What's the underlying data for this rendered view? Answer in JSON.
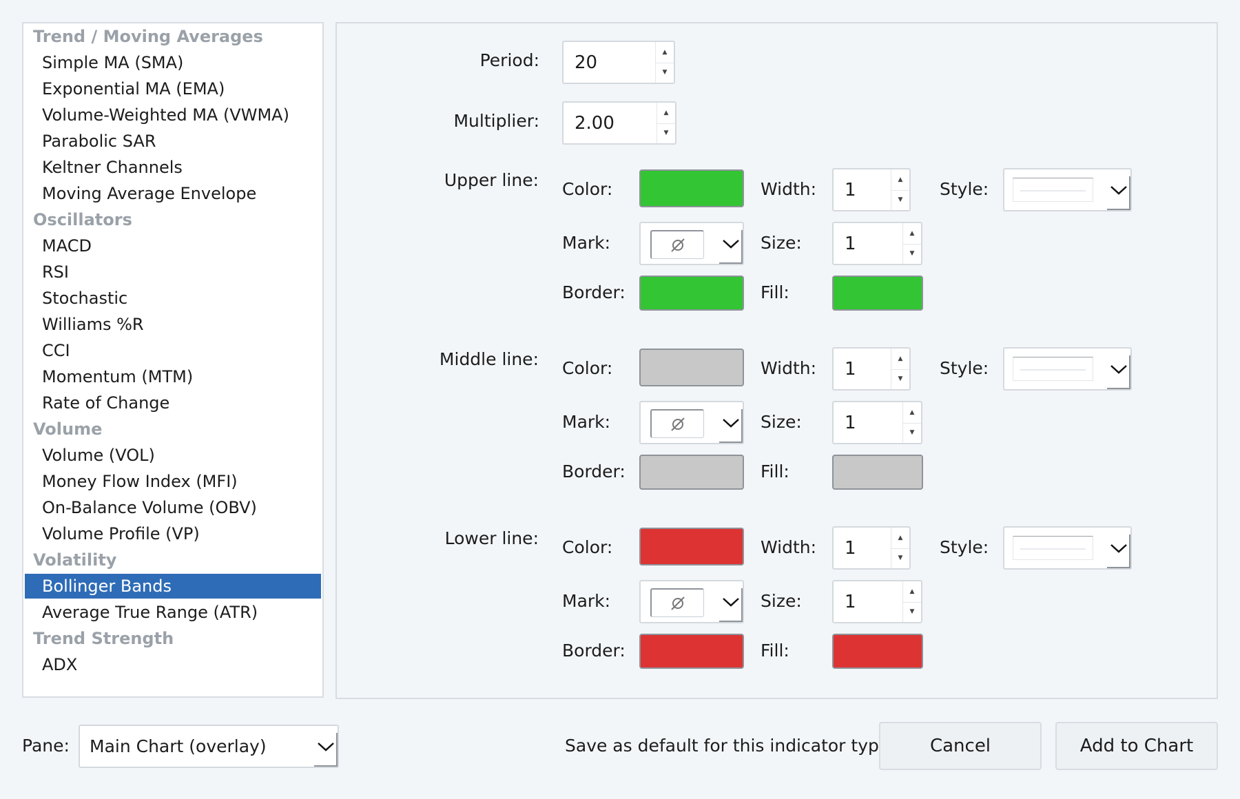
{
  "indicator_list": [
    {
      "type": "group",
      "label": "Trend / Moving Averages"
    },
    {
      "type": "item",
      "label": "Simple MA (SMA)"
    },
    {
      "type": "item",
      "label": "Exponential MA (EMA)"
    },
    {
      "type": "item",
      "label": "Volume-Weighted MA (VWMA)"
    },
    {
      "type": "item",
      "label": "Parabolic SAR"
    },
    {
      "type": "item",
      "label": "Keltner Channels"
    },
    {
      "type": "item",
      "label": "Moving Average Envelope"
    },
    {
      "type": "group",
      "label": "Oscillators"
    },
    {
      "type": "item",
      "label": "MACD"
    },
    {
      "type": "item",
      "label": "RSI"
    },
    {
      "type": "item",
      "label": "Stochastic"
    },
    {
      "type": "item",
      "label": "Williams %R"
    },
    {
      "type": "item",
      "label": "CCI"
    },
    {
      "type": "item",
      "label": "Momentum (MTM)"
    },
    {
      "type": "item",
      "label": "Rate of Change"
    },
    {
      "type": "group",
      "label": "Volume"
    },
    {
      "type": "item",
      "label": "Volume (VOL)"
    },
    {
      "type": "item",
      "label": "Money Flow Index (MFI)"
    },
    {
      "type": "item",
      "label": "On-Balance Volume (OBV)"
    },
    {
      "type": "item",
      "label": "Volume Profile (VP)"
    },
    {
      "type": "group",
      "label": "Volatility"
    },
    {
      "type": "item",
      "label": "Bollinger Bands",
      "selected": true
    },
    {
      "type": "item",
      "label": "Average True Range (ATR)"
    },
    {
      "type": "group",
      "label": "Trend Strength"
    },
    {
      "type": "item",
      "label": "ADX"
    }
  ],
  "settings": {
    "period_label": "Period:",
    "period_value": "20",
    "multiplier_label": "Multiplier:",
    "multiplier_value": "2.00",
    "field_labels": {
      "color": "Color:",
      "width": "Width:",
      "style": "Style:",
      "mark": "Mark:",
      "size": "Size:",
      "border": "Border:",
      "fill": "Fill:"
    },
    "mark_icon": "no-mark-icon",
    "lines": [
      {
        "label": "Upper line:",
        "color": "#33c533",
        "width": "1",
        "size": "1",
        "border": "#33c533",
        "fill": "#33c533"
      },
      {
        "label": "Middle line:",
        "color": "#c8c8c8",
        "width": "1",
        "size": "1",
        "border": "#c8c8c8",
        "fill": "#c8c8c8"
      },
      {
        "label": "Lower line:",
        "color": "#dd3333",
        "width": "1",
        "size": "1",
        "border": "#dd3333",
        "fill": "#dd3333"
      }
    ]
  },
  "footer": {
    "pane_label": "Pane:",
    "pane_value": "Main Chart (overlay)",
    "save_default_label": "Save as default for this indicator type",
    "cancel_label": "Cancel",
    "add_label": "Add to Chart"
  },
  "colors": {
    "selection": "#2f6cb7",
    "group_header": "#9aa1a8"
  }
}
